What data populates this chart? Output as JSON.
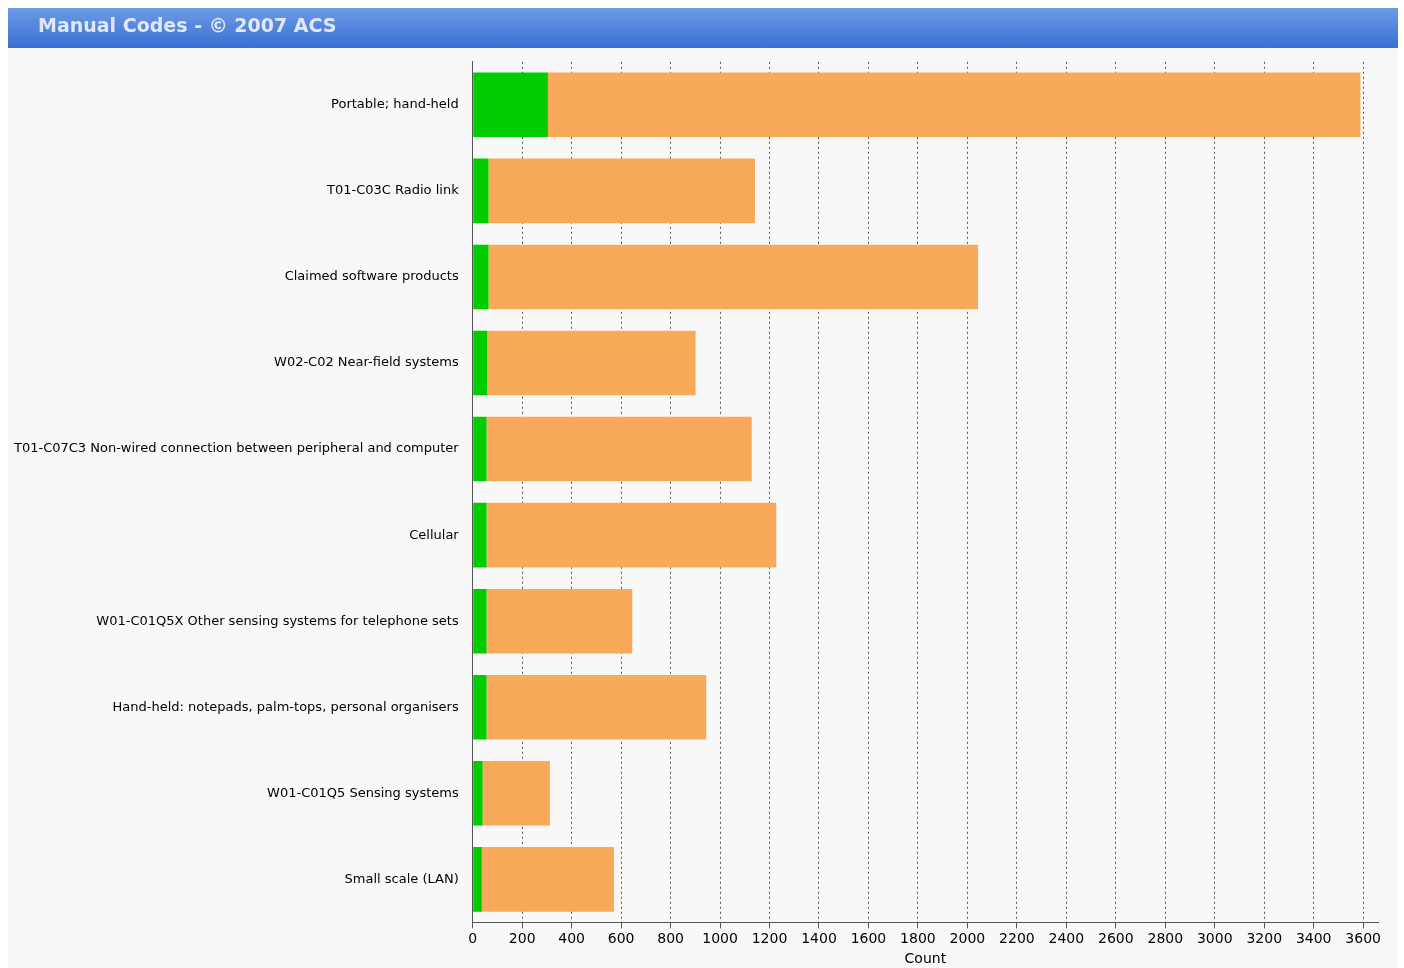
{
  "chart_data": {
    "type": "bar",
    "title": "Manual Codes - © 2007 ACS",
    "xlabel": "Count",
    "orientation": "horizontal",
    "stacked": true,
    "categories": [
      "Portable; hand-held",
      "T01-C03C Radio link",
      "Claimed software products",
      "W02-C02 Near-field systems",
      "T01-C07C3 Non-wired connection between peripheral and computer",
      "Cellular",
      "W01-C01Q5X Other sensing systems for telephone sets",
      "Hand-held: notepads, palm-tops, personal organisers",
      "W01-C01Q5 Sensing systems",
      "Small scale (LAN)"
    ],
    "series": [
      {
        "color": "#00cc00",
        "values": [
          304,
          64,
          64,
          59,
          56,
          56,
          56,
          56,
          40,
          37
        ]
      },
      {
        "color": "#f8a95a",
        "values": [
          3285,
          1077,
          1979,
          842,
          1072,
          1171,
          589,
          888,
          272,
          534
        ]
      }
    ],
    "xlim": [
      0,
      3660
    ],
    "xticks": [
      0,
      200,
      400,
      600,
      800,
      1000,
      1200,
      1400,
      1600,
      1800,
      2000,
      2200,
      2400,
      2600,
      2800,
      3000,
      3200,
      3400,
      3600
    ],
    "grid": "x",
    "legend": false
  }
}
